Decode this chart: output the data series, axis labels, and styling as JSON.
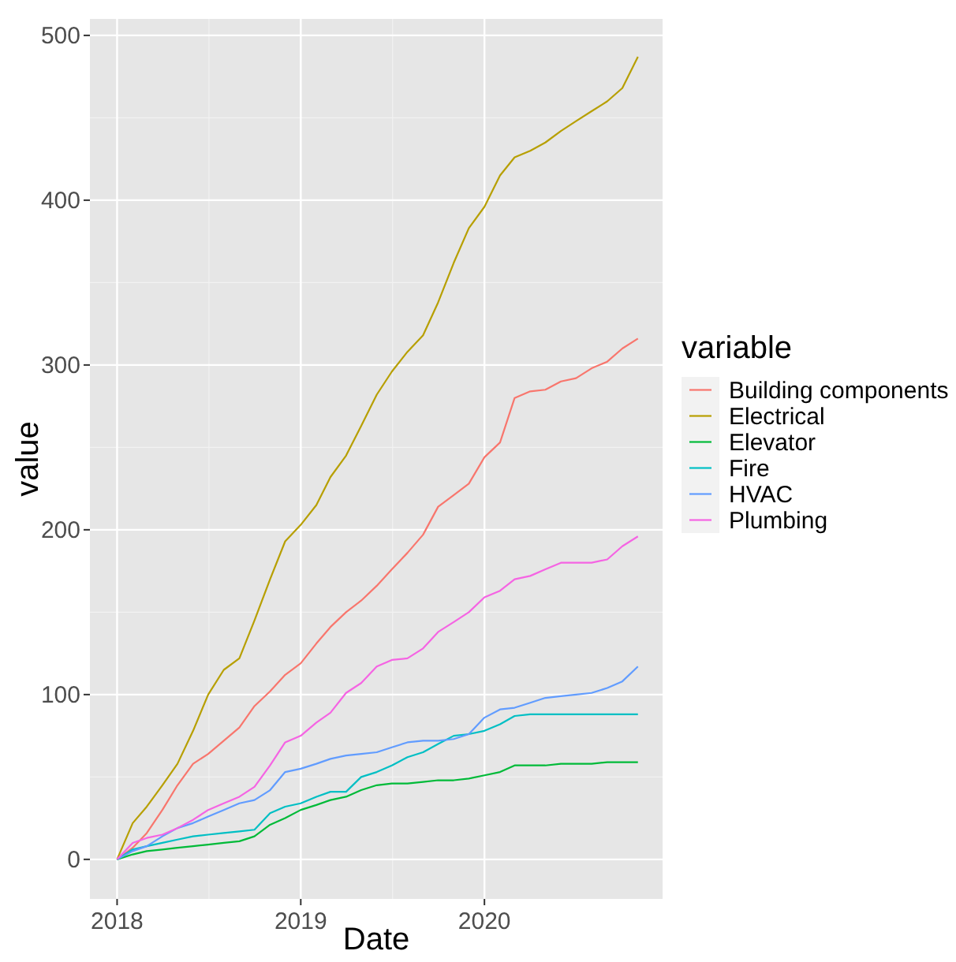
{
  "chart_data": {
    "type": "line",
    "xlabel": "Date",
    "ylabel": "value",
    "legend_title": "variable",
    "legend": "right",
    "grid": true,
    "x": [
      "2018-01",
      "2018-02",
      "2018-03",
      "2018-04",
      "2018-05",
      "2018-06",
      "2018-07",
      "2018-08",
      "2018-09",
      "2018-10",
      "2018-11",
      "2018-12",
      "2019-01",
      "2019-02",
      "2019-03",
      "2019-04",
      "2019-05",
      "2019-06",
      "2019-07",
      "2019-08",
      "2019-09",
      "2019-10",
      "2019-11",
      "2019-12",
      "2020-01",
      "2020-02",
      "2020-03",
      "2020-04",
      "2020-05",
      "2020-06",
      "2020-07",
      "2020-08",
      "2020-09",
      "2020-10",
      "2020-11"
    ],
    "xlim": [
      "2017-11-08",
      "2020-12-20"
    ],
    "xticks": [
      {
        "value": "2018-01-01",
        "label": "2018"
      },
      {
        "value": "2019-01-01",
        "label": "2019"
      },
      {
        "value": "2020-01-01",
        "label": "2020"
      }
    ],
    "ylim": [
      -24,
      510
    ],
    "yticks": [
      0,
      100,
      200,
      300,
      400,
      500
    ],
    "series": [
      {
        "name": "Building components",
        "color": "#f8766d",
        "values": [
          0,
          7,
          16,
          30,
          45,
          58,
          64,
          72,
          80,
          93,
          102,
          112,
          119,
          131,
          141,
          150,
          157,
          166,
          176,
          186,
          197,
          214,
          221,
          228,
          244,
          253,
          280,
          284,
          285,
          290,
          292,
          298,
          302,
          310,
          316
        ]
      },
      {
        "name": "Electrical",
        "color": "#b79f00",
        "values": [
          0,
          22,
          32,
          45,
          58,
          78,
          100,
          115,
          122,
          145,
          170,
          193,
          203,
          215,
          232,
          245,
          263,
          282,
          296,
          308,
          318,
          338,
          362,
          383,
          396,
          415,
          426,
          430,
          435,
          442,
          448,
          454,
          460,
          468,
          487
        ]
      },
      {
        "name": "Elevator",
        "color": "#00ba38",
        "values": [
          0,
          3,
          5,
          6,
          7,
          8,
          9,
          10,
          11,
          14,
          21,
          25,
          30,
          33,
          36,
          38,
          42,
          45,
          46,
          46,
          47,
          48,
          48,
          49,
          51,
          53,
          57,
          57,
          57,
          58,
          58,
          58,
          59,
          59,
          59
        ]
      },
      {
        "name": "Fire",
        "color": "#00bfc4",
        "values": [
          0,
          6,
          8,
          10,
          12,
          14,
          15,
          16,
          17,
          18,
          28,
          32,
          34,
          38,
          41,
          41,
          50,
          53,
          57,
          62,
          65,
          70,
          75,
          76,
          78,
          82,
          87,
          88,
          88,
          88,
          88,
          88,
          88,
          88,
          88
        ]
      },
      {
        "name": "HVAC",
        "color": "#619cff",
        "values": [
          0,
          5,
          8,
          14,
          19,
          22,
          26,
          30,
          34,
          36,
          42,
          53,
          55,
          58,
          61,
          63,
          64,
          65,
          68,
          71,
          72,
          72,
          73,
          76,
          86,
          91,
          92,
          95,
          98,
          99,
          100,
          101,
          104,
          108,
          117
        ]
      },
      {
        "name": "Plumbing",
        "color": "#f564e3",
        "values": [
          0,
          10,
          13,
          15,
          19,
          24,
          30,
          34,
          38,
          44,
          57,
          71,
          75,
          83,
          89,
          101,
          107,
          117,
          121,
          122,
          128,
          138,
          144,
          150,
          159,
          163,
          170,
          172,
          176,
          180,
          180,
          180,
          182,
          190,
          196
        ]
      }
    ]
  }
}
